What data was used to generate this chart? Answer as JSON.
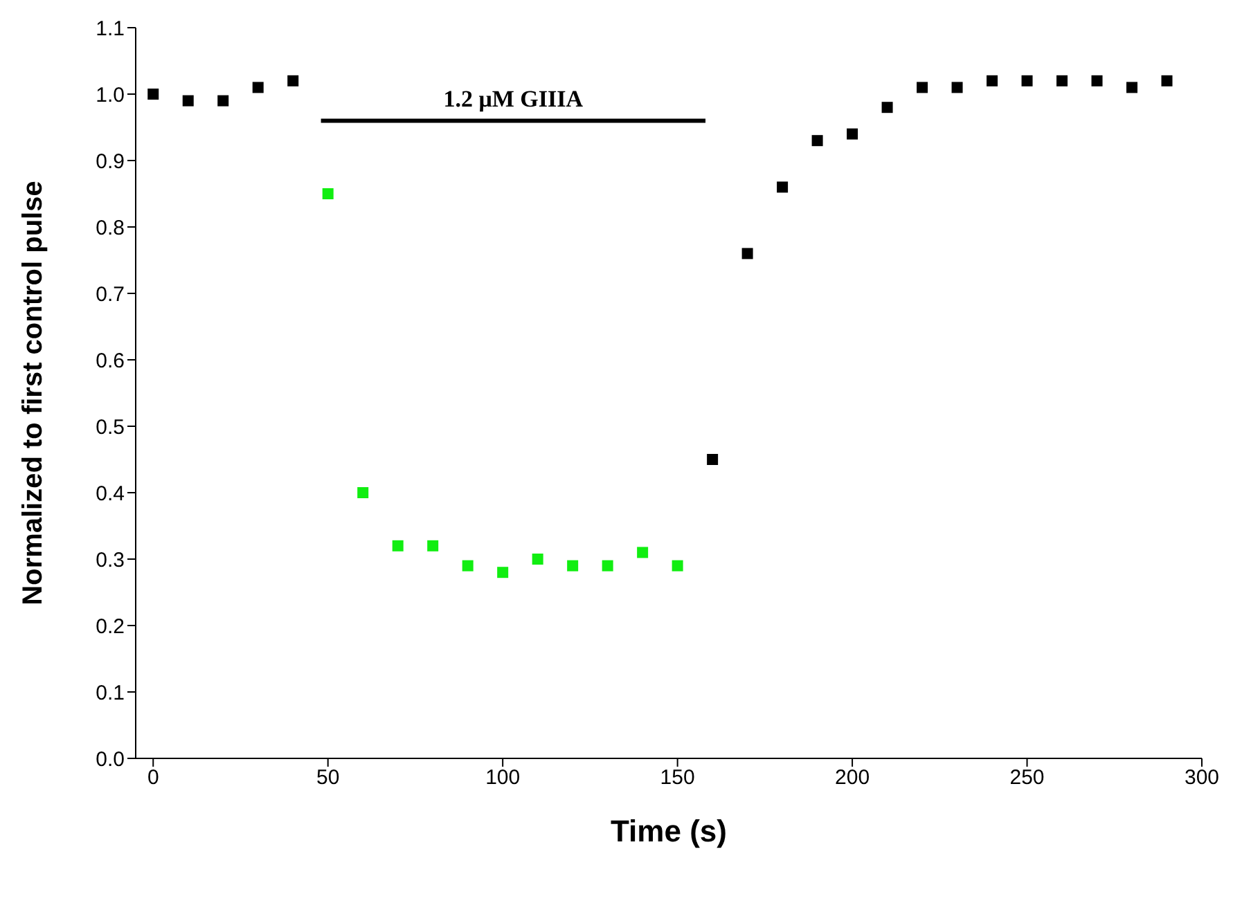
{
  "chart_data": {
    "type": "scatter",
    "xlabel": "Time (s)",
    "ylabel": "Normalized to first control pulse",
    "marker": "square",
    "grid": false,
    "annotations": [
      {
        "text": "1.2 μM GIIIA",
        "x": 103,
        "y": 0.96
      }
    ],
    "xlim": [
      -5,
      300
    ],
    "xticks": [
      0,
      50,
      100,
      150,
      200,
      250,
      300
    ],
    "ylim": [
      0,
      1.1
    ],
    "yticks": [
      {
        "value": 0,
        "label": "0.0"
      },
      {
        "value": 0.1,
        "label": "0.1"
      },
      {
        "value": 0.2,
        "label": "0.2"
      },
      {
        "value": 0.3,
        "label": "0.3"
      },
      {
        "value": 0.4,
        "label": "0.4"
      },
      {
        "value": 0.5,
        "label": "0.5"
      },
      {
        "value": 0.6,
        "label": "0.6"
      },
      {
        "value": 0.7,
        "label": "0.7"
      },
      {
        "value": 0.8,
        "label": "0.8"
      },
      {
        "value": 0.9,
        "label": "0.9"
      },
      {
        "value": 1,
        "label": "1.0"
      },
      {
        "value": 1.1,
        "label": "1.1"
      }
    ],
    "series": [
      {
        "type": "line",
        "marker": "none",
        "color": "#000000",
        "x": [
          48,
          158
        ],
        "values": [
          0.96,
          0.96
        ]
      },
      {
        "color": "#000000",
        "x": [
          0,
          10,
          20,
          30,
          40,
          160,
          170,
          180,
          190,
          200,
          210,
          220,
          230,
          240,
          250,
          260,
          270,
          280,
          290
        ],
        "values": [
          1.0,
          0.99,
          0.99,
          1.01,
          1.02,
          0.45,
          0.76,
          0.86,
          0.93,
          0.94,
          0.98,
          1.01,
          1.01,
          1.02,
          1.02,
          1.02,
          1.02,
          1.01,
          1.02
        ]
      },
      {
        "color": "#11ee11",
        "x": [
          50,
          60,
          70,
          80,
          90,
          100,
          110,
          120,
          130,
          140,
          150
        ],
        "values": [
          0.85,
          0.4,
          0.32,
          0.32,
          0.29,
          0.28,
          0.3,
          0.29,
          0.29,
          0.31,
          0.29
        ]
      }
    ]
  }
}
